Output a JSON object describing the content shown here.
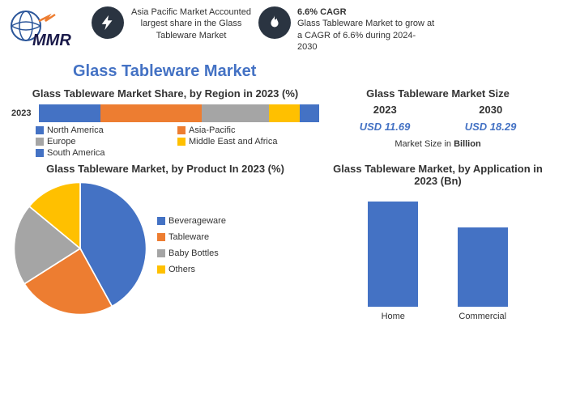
{
  "header": {
    "logo_text": "MMR",
    "fact1": {
      "text": "Asia Pacific Market Accounted largest share in the Glass Tableware Market"
    },
    "fact2": {
      "title": "6.6% CAGR",
      "text": "Glass Tableware Market to grow at a CAGR of 6.6% during 2024-2030"
    }
  },
  "main_title": "Glass Tableware Market",
  "share_chart": {
    "title": "Glass Tableware Market Share, by Region in 2023 (%)",
    "year_label": "2023",
    "segments": [
      {
        "label": "North America",
        "value": 22,
        "color": "#4472c4"
      },
      {
        "label": "Asia-Pacific",
        "value": 36,
        "color": "#ed7d31"
      },
      {
        "label": "Europe",
        "value": 24,
        "color": "#a5a5a5"
      },
      {
        "label": "Middle East and Africa",
        "value": 11,
        "color": "#ffc000"
      },
      {
        "label": "South America",
        "value": 7,
        "color": "#4472c4"
      }
    ]
  },
  "size_box": {
    "title": "Glass Tableware Market Size",
    "year1": "2023",
    "year2": "2030",
    "val1": "USD 11.69",
    "val2": "USD 18.29",
    "note_pre": "Market Size in ",
    "note_bold": "Billion"
  },
  "pie_chart": {
    "title": "Glass Tableware Market, by Product In 2023 (%)",
    "slices": [
      {
        "label": "Beverageware",
        "value": 42,
        "color": "#4472c4"
      },
      {
        "label": "Tableware",
        "value": 24,
        "color": "#ed7d31"
      },
      {
        "label": "Baby Bottles",
        "value": 20,
        "color": "#a5a5a5"
      },
      {
        "label": "Others",
        "value": 14,
        "color": "#ffc000"
      }
    ]
  },
  "bar_chart": {
    "title": "Glass Tableware Market, by Application in 2023 (Bn)",
    "bars": [
      {
        "label": "Home",
        "value": 130,
        "color": "#4472c4"
      },
      {
        "label": "Commercial",
        "value": 98,
        "color": "#4472c4"
      }
    ]
  }
}
